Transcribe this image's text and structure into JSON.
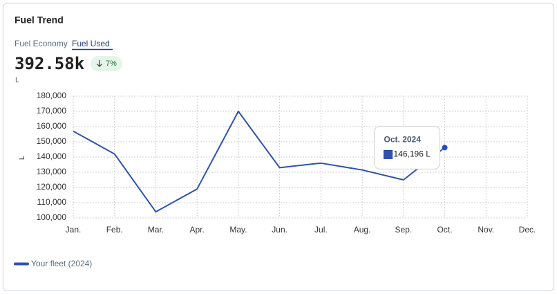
{
  "header": {
    "title": "Fuel Trend",
    "tabs": [
      "Fuel Economy",
      "Fuel Used"
    ],
    "kpi": "392.58k",
    "change": "7%",
    "unit": "L"
  },
  "chart_data": {
    "type": "line",
    "ylabel": "L",
    "categories": [
      "Jan.",
      "Feb.",
      "Mar.",
      "Apr.",
      "May.",
      "Jun.",
      "Jul.",
      "Aug.",
      "Sep.",
      "Oct.",
      "Nov.",
      "Dec."
    ],
    "series": [
      {
        "name": "Your fleet (2024)",
        "color": "#2f52b1",
        "values": [
          157000,
          142000,
          104000,
          119000,
          170000,
          133000,
          136000,
          131500,
          125000,
          146196,
          null,
          null
        ]
      }
    ],
    "ylim": [
      100000,
      180000
    ],
    "yticks": [
      {
        "value": 100000,
        "label": "100,000"
      },
      {
        "value": 110000,
        "label": "110,000"
      },
      {
        "value": 120000,
        "label": "120,000"
      },
      {
        "value": 130000,
        "label": "130,000"
      },
      {
        "value": 140000,
        "label": "140,000"
      },
      {
        "value": 150000,
        "label": "150,000"
      },
      {
        "value": 160000,
        "label": "160,000"
      },
      {
        "value": 170000,
        "label": "170,000"
      },
      {
        "value": 180000,
        "label": "180,000"
      }
    ],
    "grid": true,
    "tooltip": {
      "title": "Oct. 2024",
      "label": "146,196 L"
    }
  }
}
